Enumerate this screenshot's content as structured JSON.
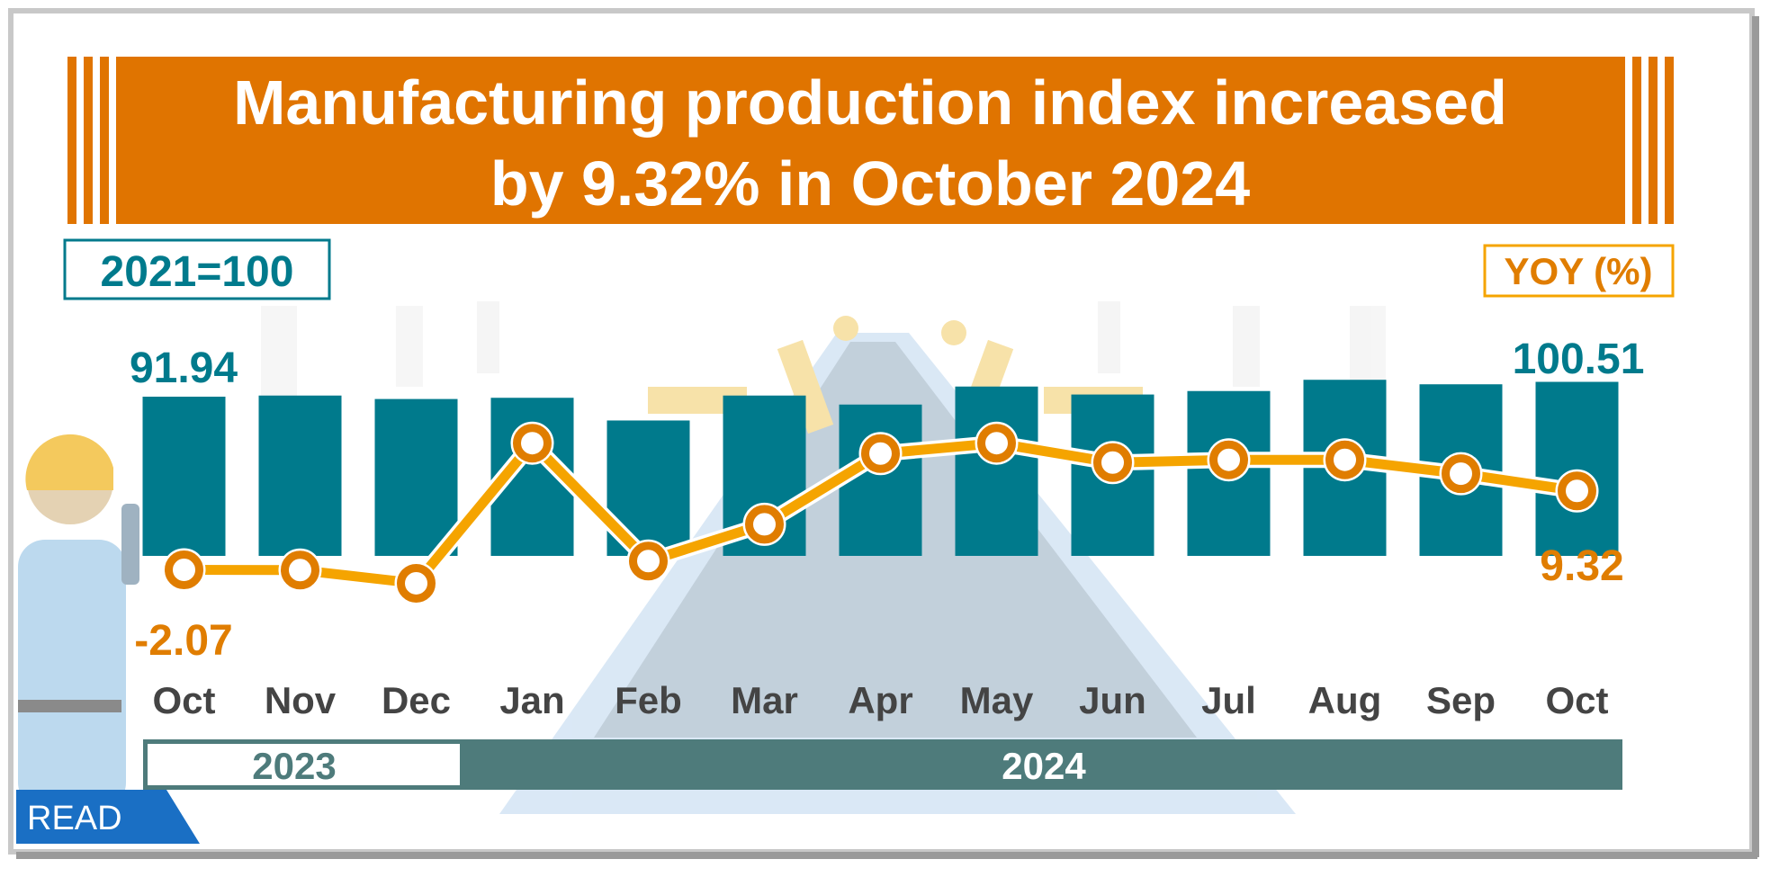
{
  "colors": {
    "banner": "#e07400",
    "bar": "#007a8c",
    "line": "#f5a400",
    "marker": "#e07d00",
    "year_bar": "#4e7b7b",
    "read_badge": "#1a6fc4"
  },
  "banner": {
    "line1": "Manufacturing production index increased",
    "line2": "by 9.32% in October 2024"
  },
  "badge": {
    "read": "READ"
  },
  "chart_data": {
    "type": "bar+line",
    "title": "Manufacturing production index increased by 9.32% in October 2024",
    "categories": [
      "Oct",
      "Nov",
      "Dec",
      "Jan",
      "Feb",
      "Mar",
      "Apr",
      "May",
      "Jun",
      "Jul",
      "Aug",
      "Sep",
      "Oct"
    ],
    "years": [
      {
        "label": "2023",
        "span": 3
      },
      {
        "label": "2024",
        "span": 10
      }
    ],
    "left_axis_label": "2021=100",
    "right_axis_label": "YOY (%)",
    "series": [
      {
        "name": "Index (2021=100)",
        "type": "bar",
        "values": [
          91.94,
          92.6,
          90.6,
          91.3,
          78.2,
          92.6,
          87.4,
          97.8,
          93.2,
          95.2,
          101.7,
          99.1,
          100.51
        ]
      },
      {
        "name": "YOY (%)",
        "type": "line",
        "values": [
          -2.07,
          -2.1,
          -4.0,
          16.2,
          -0.8,
          4.5,
          14.7,
          16.2,
          13.4,
          13.8,
          13.8,
          11.8,
          9.32
        ]
      }
    ],
    "labels": {
      "first_index": "91.94",
      "last_index": "100.51",
      "first_yoy": "-2.07",
      "last_yoy": "9.32"
    },
    "grid": false
  }
}
